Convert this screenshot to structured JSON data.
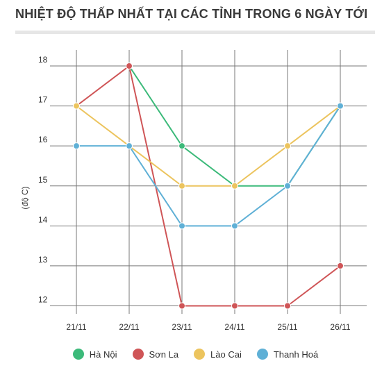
{
  "title": "NHIỆT ĐỘ THẤP NHẤT TẠI CÁC TỈNH TRONG 6 NGÀY TỚI",
  "chart_data": {
    "type": "line",
    "categories": [
      "21/11",
      "22/11",
      "23/11",
      "24/11",
      "25/11",
      "26/11"
    ],
    "ylabel": "(độ C)",
    "xlabel": "",
    "ylim": [
      11.8,
      18.4
    ],
    "yticks": [
      12,
      13,
      14,
      15,
      16,
      17,
      18
    ],
    "grid": true,
    "legend_position": "bottom",
    "series": [
      {
        "name": "Hà Nội",
        "color": "#3cba7a",
        "values": [
          null,
          18,
          16,
          15,
          15,
          17
        ]
      },
      {
        "name": "Sơn La",
        "color": "#cf5557",
        "values": [
          17,
          18,
          12,
          12,
          12,
          13
        ]
      },
      {
        "name": "Lào Cai",
        "color": "#ecc45e",
        "values": [
          17,
          16,
          15,
          15,
          16,
          17
        ]
      },
      {
        "name": "Thanh Hoá",
        "color": "#5fb0d6",
        "values": [
          16,
          16,
          14,
          14,
          15,
          17
        ]
      }
    ]
  }
}
